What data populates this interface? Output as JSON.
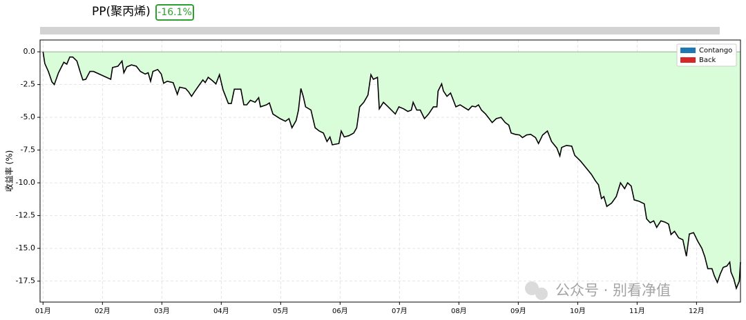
{
  "chart_data": {
    "type": "line",
    "title": "PP(聚丙烯)",
    "badge": "-16.1%",
    "ylabel": "收益率 (%)",
    "watermark": "公众号 · 别看净值",
    "line_color": "#000000",
    "fill_color": "#d9fdd9",
    "grid": true,
    "legend_position": "upper right",
    "legend": [
      {
        "name": "Contango",
        "color": "#1f77b4"
      },
      {
        "name": "Back",
        "color": "#d62728"
      }
    ],
    "xlim": [
      0.95,
      12.74
    ],
    "ylim": [
      -19.1,
      0.9
    ],
    "xticks": [
      {
        "value": 1,
        "label": "01月"
      },
      {
        "value": 2,
        "label": "02月"
      },
      {
        "value": 3,
        "label": "03月"
      },
      {
        "value": 4,
        "label": "04月"
      },
      {
        "value": 5,
        "label": "05月"
      },
      {
        "value": 6,
        "label": "06月"
      },
      {
        "value": 7,
        "label": "07月"
      },
      {
        "value": 8,
        "label": "08月"
      },
      {
        "value": 9,
        "label": "09月"
      },
      {
        "value": 10,
        "label": "10月"
      },
      {
        "value": 11,
        "label": "11月"
      },
      {
        "value": 12,
        "label": "12月"
      }
    ],
    "yticks": [
      {
        "value": 0,
        "label": "0.0"
      },
      -2.5,
      {
        "value": -5,
        "label": "-5.0"
      },
      -7.5,
      {
        "value": -10,
        "label": "-10.0"
      },
      -12.5,
      {
        "value": -15,
        "label": "-15.0"
      },
      -17.5
    ],
    "x": [
      1.0,
      1.03,
      1.09,
      1.15,
      1.19,
      1.26,
      1.35,
      1.4,
      1.45,
      1.5,
      1.57,
      1.63,
      1.67,
      1.72,
      1.79,
      1.85,
      2.14,
      2.17,
      2.26,
      2.33,
      2.36,
      2.41,
      2.49,
      2.57,
      2.64,
      2.72,
      2.77,
      2.81,
      2.85,
      2.93,
      2.99,
      3.03,
      3.09,
      3.19,
      3.26,
      3.3,
      3.4,
      3.45,
      3.5,
      3.55,
      3.62,
      3.69,
      3.73,
      3.78,
      3.85,
      3.91,
      3.97,
      4.03,
      4.12,
      4.17,
      4.22,
      4.33,
      4.38,
      4.43,
      4.49,
      4.57,
      4.63,
      4.66,
      4.76,
      4.81,
      4.87,
      4.99,
      5.08,
      5.14,
      5.19,
      5.26,
      5.3,
      5.34,
      5.38,
      5.42,
      5.51,
      5.58,
      5.65,
      5.72,
      5.78,
      5.83,
      5.87,
      5.98,
      6.02,
      6.07,
      6.15,
      6.23,
      6.28,
      6.33,
      6.4,
      6.47,
      6.52,
      6.56,
      6.63,
      6.66,
      6.73,
      6.81,
      6.93,
      6.99,
      7.07,
      7.14,
      7.2,
      7.23,
      7.29,
      7.35,
      7.42,
      7.49,
      7.57,
      7.63,
      7.65,
      7.71,
      7.74,
      7.8,
      7.86,
      7.95,
      8.02,
      8.09,
      8.16,
      8.22,
      8.28,
      8.33,
      8.38,
      8.45,
      8.51,
      8.56,
      8.63,
      8.71,
      8.78,
      8.84,
      8.88,
      8.95,
      9.02,
      9.07,
      9.14,
      9.21,
      9.29,
      9.34,
      9.41,
      9.49,
      9.56,
      9.65,
      9.7,
      9.73,
      9.81,
      9.9,
      9.95,
      10.05,
      10.14,
      10.23,
      10.3,
      10.35,
      10.4,
      10.44,
      10.49,
      10.57,
      10.65,
      10.72,
      10.79,
      10.84,
      10.9,
      10.95,
      11.03,
      11.12,
      11.16,
      11.22,
      11.28,
      11.33,
      11.4,
      11.47,
      11.53,
      11.57,
      11.63,
      11.7,
      11.77,
      11.83,
      11.88,
      11.95,
      12.02,
      12.09,
      12.14,
      12.19,
      12.26,
      12.3,
      12.35,
      12.4,
      12.45,
      12.51,
      12.56,
      12.58,
      12.63,
      12.67,
      12.72,
      12.74
    ],
    "values": [
      0,
      -0.9,
      -1.5,
      -2.3,
      -2.5,
      -1.6,
      -0.8,
      -0.95,
      -0.4,
      -0.4,
      -0.7,
      -1.6,
      -2.15,
      -2.1,
      -1.5,
      -1.5,
      -2.1,
      -1.2,
      -1.1,
      -0.7,
      -1.6,
      -1.15,
      -1.0,
      -1.1,
      -1.5,
      -1.7,
      -1.6,
      -2.25,
      -1.5,
      -1.35,
      -1.7,
      -2.4,
      -2.25,
      -2.35,
      -3.25,
      -2.7,
      -2.8,
      -3.05,
      -3.4,
      -3.05,
      -2.6,
      -2.15,
      -2.35,
      -1.95,
      -2.2,
      -2.45,
      -1.75,
      -2.9,
      -3.95,
      -3.95,
      -2.85,
      -2.85,
      -4.05,
      -4.05,
      -3.7,
      -3.85,
      -3.5,
      -4.2,
      -4.05,
      -3.9,
      -4.75,
      -5.1,
      -5.3,
      -5.1,
      -5.8,
      -5.25,
      -4.45,
      -2.8,
      -3.4,
      -4.2,
      -4.45,
      -5.8,
      -6.05,
      -6.2,
      -6.85,
      -6.5,
      -7.1,
      -7.0,
      -6.05,
      -6.5,
      -6.4,
      -6.2,
      -5.8,
      -4.2,
      -3.85,
      -3.3,
      -1.75,
      -2.1,
      -1.95,
      -4.35,
      -3.85,
      -4.2,
      -4.75,
      -4.2,
      -4.35,
      -4.55,
      -4.45,
      -3.85,
      -4.45,
      -4.45,
      -5.1,
      -4.75,
      -4.2,
      -4.2,
      -3.0,
      -2.45,
      -3.0,
      -3.4,
      -3.15,
      -4.2,
      -4.05,
      -4.25,
      -4.45,
      -4.15,
      -4.2,
      -4.05,
      -4.45,
      -4.75,
      -5.1,
      -5.4,
      -5.1,
      -5.0,
      -5.4,
      -5.6,
      -6.2,
      -6.3,
      -6.35,
      -6.55,
      -6.35,
      -6.3,
      -6.55,
      -7.0,
      -6.35,
      -6.05,
      -6.85,
      -7.35,
      -7.95,
      -7.3,
      -7.15,
      -7.2,
      -7.9,
      -8.35,
      -8.85,
      -9.35,
      -9.85,
      -10.15,
      -11.2,
      -11.05,
      -11.8,
      -11.55,
      -11.05,
      -10.0,
      -10.45,
      -10.0,
      -10.25,
      -11.3,
      -11.4,
      -11.6,
      -12.75,
      -13.05,
      -12.9,
      -13.4,
      -12.9,
      -13.0,
      -13.15,
      -13.95,
      -13.7,
      -14.2,
      -14.35,
      -15.6,
      -13.9,
      -13.8,
      -14.45,
      -15.0,
      -15.65,
      -16.55,
      -16.55,
      -17.1,
      -17.6,
      -16.95,
      -16.45,
      -16.35,
      -16.05,
      -16.8,
      -17.35,
      -18.05,
      -17.5,
      -16.05
    ]
  }
}
